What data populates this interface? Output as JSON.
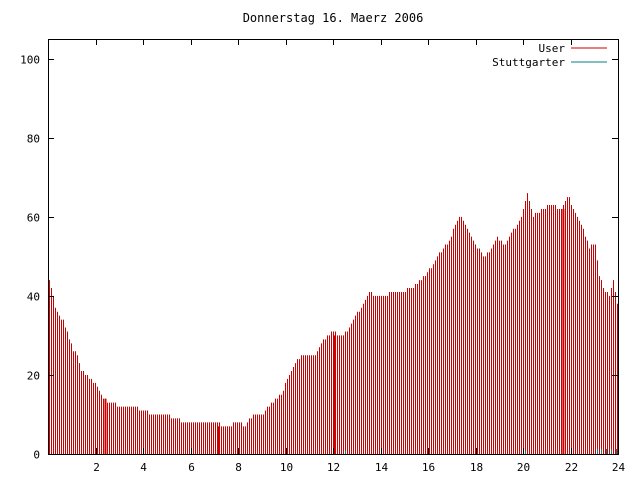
{
  "chart_data": {
    "type": "bar",
    "title": "Donnerstag 16. Maerz 2006",
    "xlabel": "",
    "ylabel": "",
    "xlim": [
      0,
      24
    ],
    "ylim": [
      0,
      105
    ],
    "xticks": [
      2,
      4,
      6,
      8,
      10,
      12,
      14,
      16,
      18,
      20,
      22,
      24
    ],
    "yticks": [
      0,
      20,
      40,
      60,
      80,
      100
    ],
    "legend_position": "top-right",
    "grid": false,
    "series": [
      {
        "name": "User",
        "color": "#cc0000",
        "keypoints": [
          [
            0.0,
            45
          ],
          [
            0.15,
            42
          ],
          [
            0.3,
            37
          ],
          [
            0.45,
            35
          ],
          [
            0.6,
            34
          ],
          [
            0.8,
            31
          ],
          [
            1.0,
            27
          ],
          [
            1.2,
            25
          ],
          [
            1.4,
            21
          ],
          [
            1.6,
            20
          ],
          [
            1.8,
            19
          ],
          [
            2.1,
            17
          ],
          [
            2.3,
            14
          ],
          [
            2.6,
            13
          ],
          [
            3.2,
            12
          ],
          [
            3.6,
            12
          ],
          [
            4.0,
            11
          ],
          [
            4.4,
            10
          ],
          [
            4.8,
            10
          ],
          [
            5.4,
            9
          ],
          [
            5.8,
            8
          ],
          [
            6.4,
            8
          ],
          [
            7.0,
            8
          ],
          [
            7.5,
            7
          ],
          [
            8.0,
            8
          ],
          [
            8.3,
            7
          ],
          [
            8.6,
            10
          ],
          [
            9.0,
            10
          ],
          [
            9.4,
            13
          ],
          [
            9.8,
            15
          ],
          [
            10.0,
            18
          ],
          [
            10.2,
            21
          ],
          [
            10.5,
            24
          ],
          [
            10.8,
            25
          ],
          [
            11.2,
            25
          ],
          [
            11.6,
            29
          ],
          [
            12.0,
            31
          ],
          [
            12.3,
            30
          ],
          [
            12.6,
            31
          ],
          [
            12.9,
            35
          ],
          [
            13.2,
            37
          ],
          [
            13.5,
            41
          ],
          [
            13.8,
            40
          ],
          [
            14.1,
            40
          ],
          [
            14.5,
            41
          ],
          [
            14.9,
            41
          ],
          [
            15.3,
            42
          ],
          [
            15.7,
            44
          ],
          [
            16.1,
            47
          ],
          [
            16.5,
            51
          ],
          [
            16.9,
            54
          ],
          [
            17.2,
            59
          ],
          [
            17.4,
            60
          ],
          [
            17.7,
            56
          ],
          [
            18.0,
            53
          ],
          [
            18.3,
            50
          ],
          [
            18.6,
            51
          ],
          [
            18.9,
            55
          ],
          [
            19.2,
            53
          ],
          [
            19.5,
            56
          ],
          [
            19.8,
            58
          ],
          [
            20.0,
            62
          ],
          [
            20.15,
            66
          ],
          [
            20.4,
            60
          ],
          [
            20.8,
            62
          ],
          [
            21.2,
            63
          ],
          [
            21.6,
            62
          ],
          [
            21.9,
            65
          ],
          [
            22.2,
            61
          ],
          [
            22.5,
            57
          ],
          [
            22.8,
            52
          ],
          [
            23.0,
            54
          ],
          [
            23.2,
            45
          ],
          [
            23.4,
            42
          ],
          [
            23.6,
            40
          ],
          [
            23.8,
            44
          ],
          [
            24.0,
            37
          ]
        ],
        "highlight_bars": [
          [
            2.42,
            14
          ],
          [
            7.18,
            7
          ],
          [
            12.05,
            30
          ],
          [
            21.7,
            62
          ]
        ]
      },
      {
        "name": "Stuttgarter",
        "color": "#008080",
        "bars": [
          [
            12.5,
            0.5
          ],
          [
            20.1,
            0.5
          ],
          [
            23.1,
            1
          ],
          [
            23.3,
            1
          ],
          [
            23.5,
            1
          ],
          [
            23.7,
            1
          ],
          [
            23.9,
            1
          ]
        ]
      }
    ]
  }
}
